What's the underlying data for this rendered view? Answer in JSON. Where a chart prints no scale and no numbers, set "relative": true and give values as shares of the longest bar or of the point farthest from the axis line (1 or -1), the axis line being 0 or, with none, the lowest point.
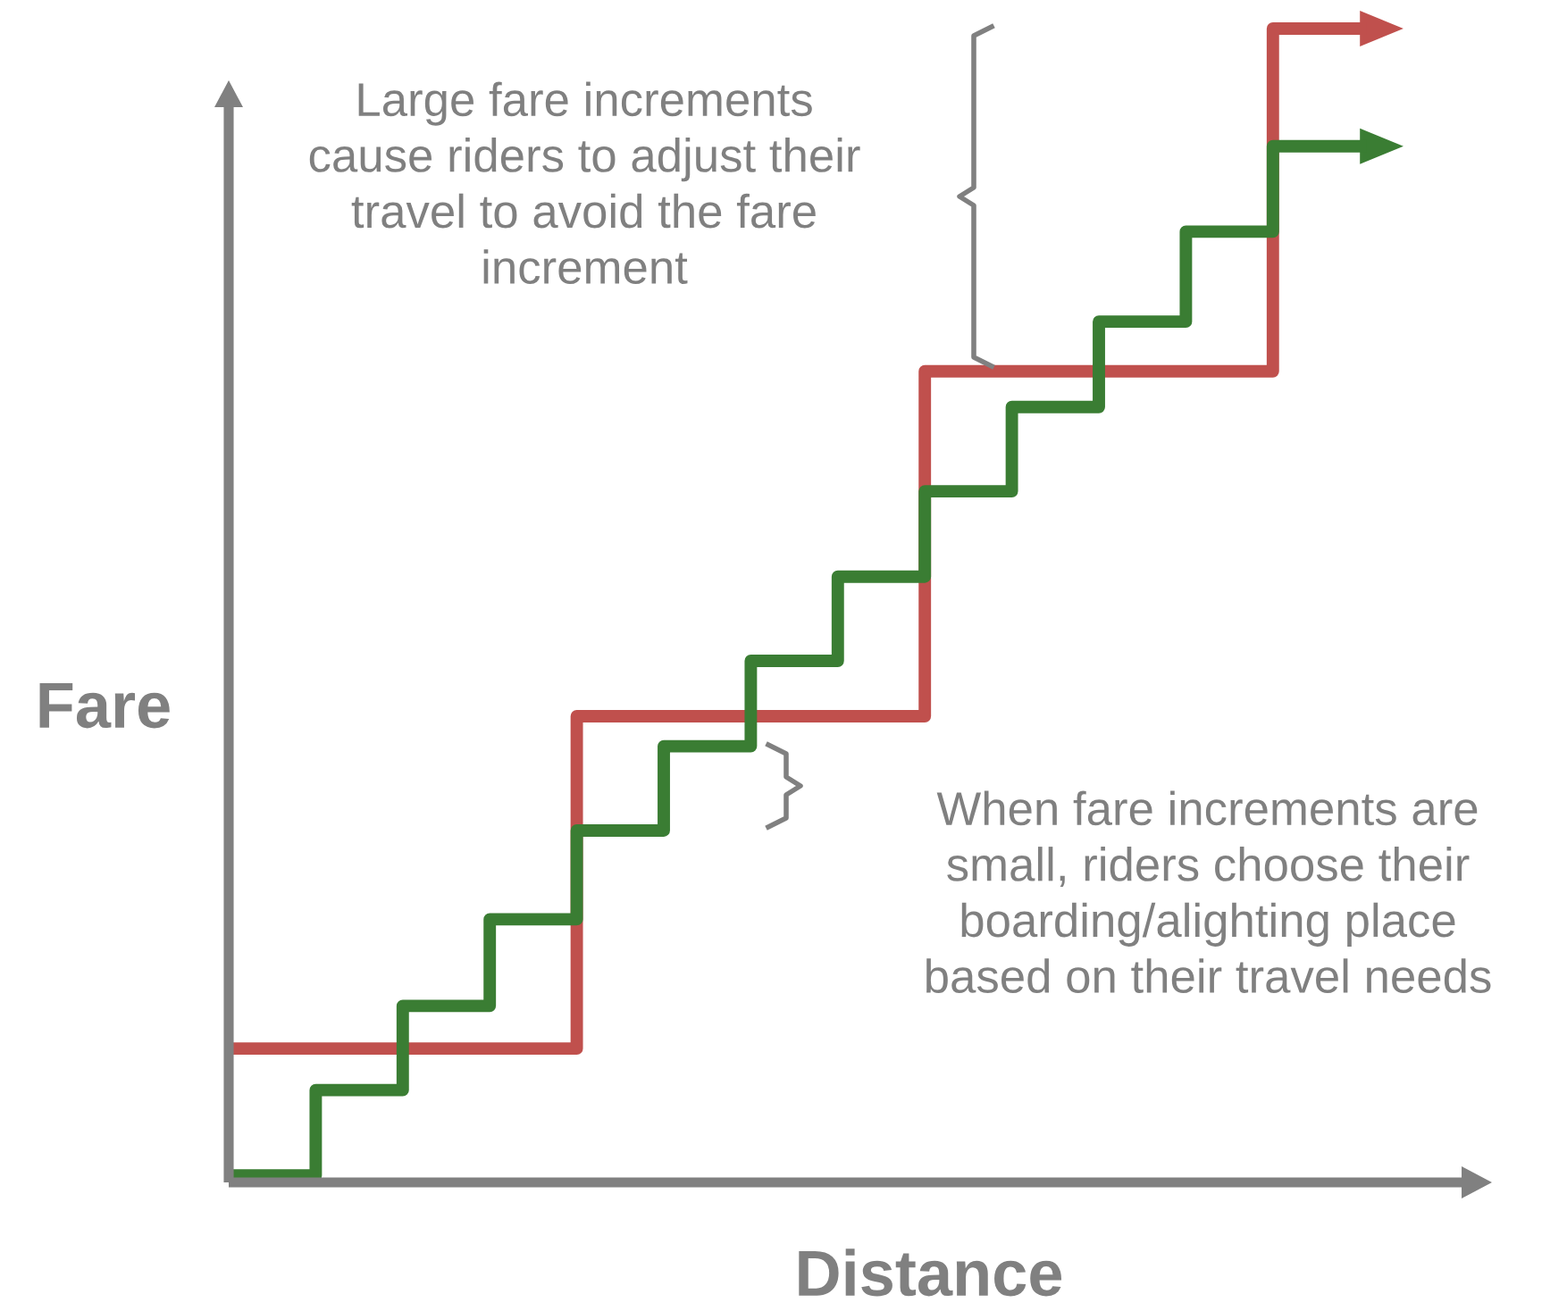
{
  "chart_data": {
    "type": "step",
    "relative": true,
    "xlabel": "Distance",
    "ylabel": "Fare",
    "categories": [
      null,
      null,
      null,
      null,
      null,
      null,
      null,
      null,
      null,
      null,
      null,
      null,
      null,
      null
    ],
    "series": [
      {
        "color": "#c0504d",
        "values": [
          0.116,
          0.116,
          0.116,
          0.116,
          0.404,
          0.404,
          0.404,
          0.404,
          0.703,
          0.703,
          0.703,
          0.703,
          1,
          1
        ]
      },
      {
        "color": "#3a7d33",
        "values": [
          0.006,
          0.08,
          0.153,
          0.228,
          0.305,
          0.378,
          0.452,
          0.525,
          0.599,
          0.672,
          0.746,
          0.824,
          0.898,
          0.898
        ]
      }
    ],
    "annotations": [
      "Large fare increments\ncause riders to adjust their\ntravel to avoid the fare\nincrement",
      "When fare increments are\nsmall, riders choose their\nboarding/alighting place\nbased on their travel needs"
    ],
    "legend": false
  }
}
